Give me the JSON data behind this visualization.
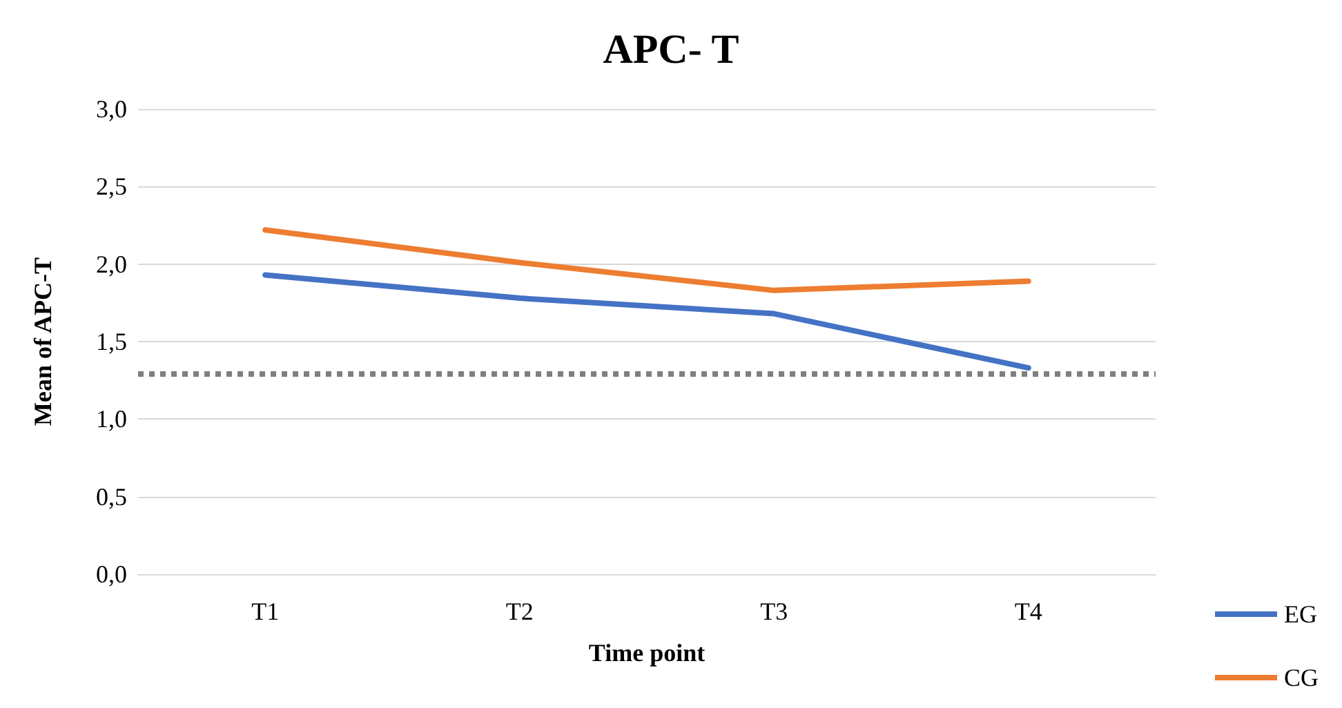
{
  "chart_data": {
    "type": "line",
    "title": "APC- T",
    "xlabel": "Time point",
    "ylabel": "Mean of APC-T",
    "categories": [
      "T1",
      "T2",
      "T3",
      "T4"
    ],
    "series": [
      {
        "name": "EG",
        "color": "#4472c4",
        "values": [
          1.93,
          1.78,
          1.68,
          1.33
        ]
      },
      {
        "name": "CG",
        "color": "#ed7d31",
        "values": [
          2.22,
          2.01,
          1.83,
          1.89
        ]
      }
    ],
    "ylim": [
      0,
      3
    ],
    "yticks": [
      {
        "value": 0,
        "label": "0,0"
      },
      {
        "value": 0.5,
        "label": "0,5"
      },
      {
        "value": 1,
        "label": "1,0"
      },
      {
        "value": 1.5,
        "label": "1,5"
      },
      {
        "value": 2,
        "label": "2,0"
      },
      {
        "value": 2.5,
        "label": "2,5"
      },
      {
        "value": 3,
        "label": "3,0"
      }
    ],
    "ref_lines": [
      {
        "axis": "y",
        "value": 1.29,
        "color": "#7f7f7f",
        "line_style": "dotted"
      }
    ],
    "grid": "y",
    "legend": "bottom right",
    "marker": "none",
    "line_style": "solid"
  }
}
